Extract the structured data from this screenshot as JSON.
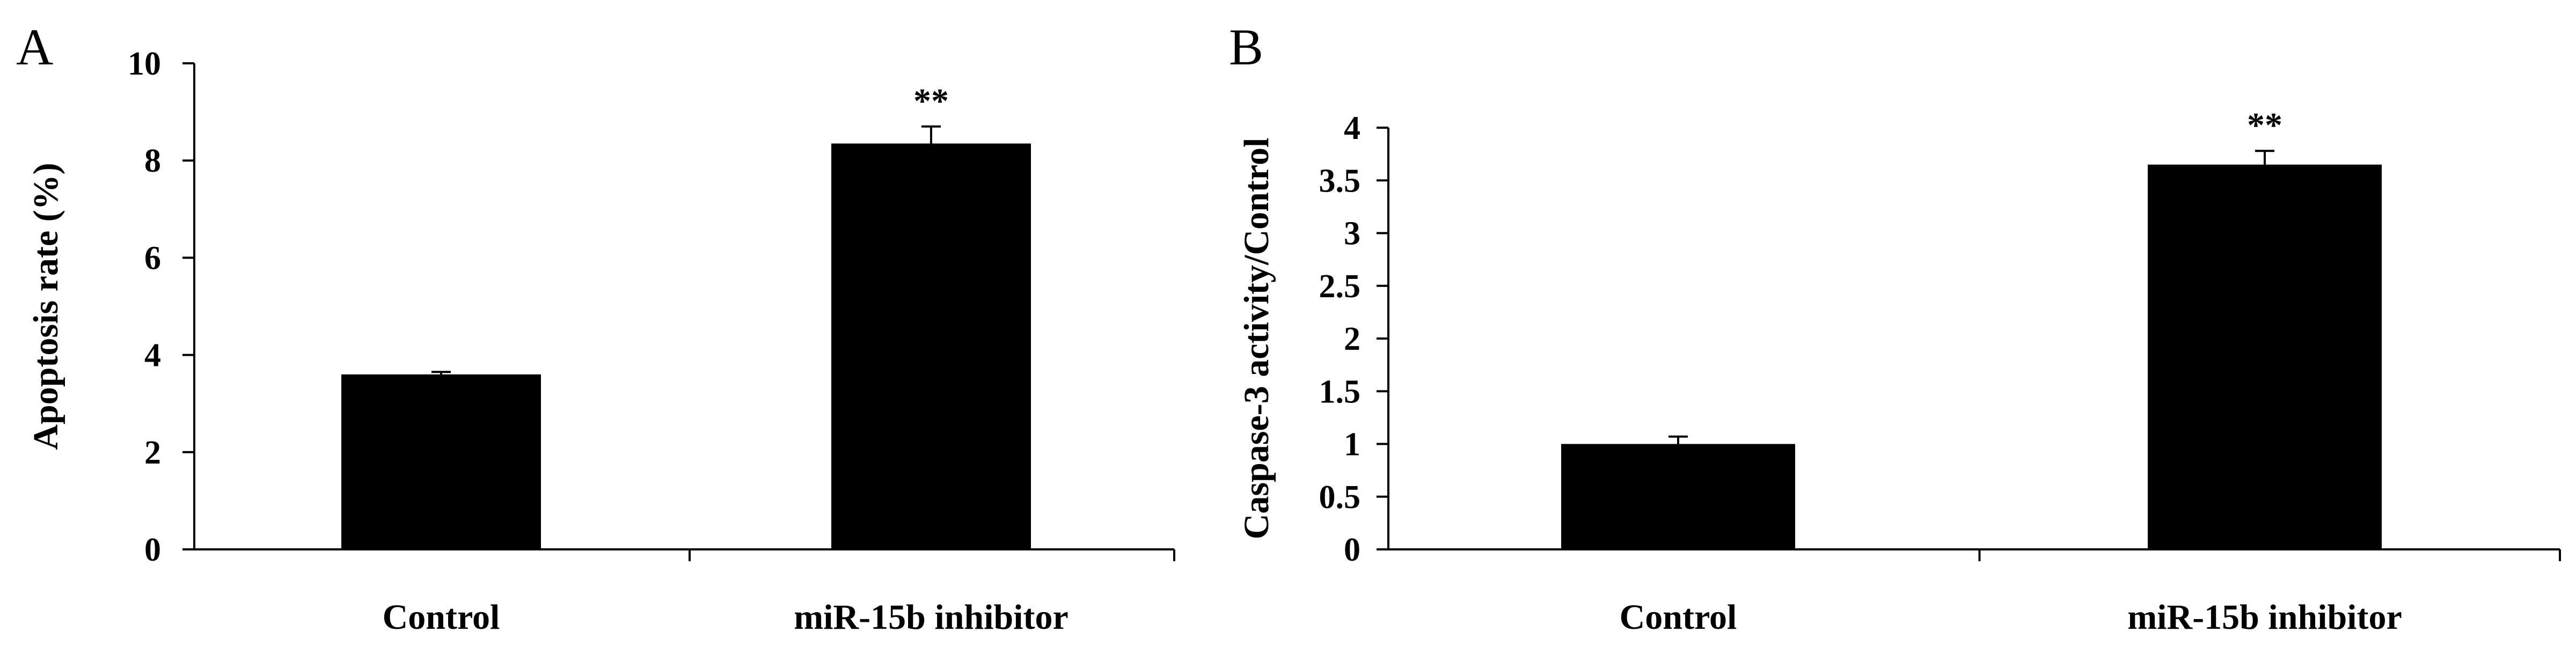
{
  "chart_data": [
    {
      "panel": "A",
      "type": "bar",
      "categories": [
        "Control",
        "miR-15b inhibitor"
      ],
      "values": [
        3.6,
        8.35
      ],
      "errors": [
        0.05,
        0.35
      ],
      "significance": [
        "",
        "**"
      ],
      "xlabel": "",
      "ylabel": "Apoptosis rate (%)",
      "ylim": [
        0,
        10
      ],
      "yticks": [
        "0",
        "2",
        "4",
        "6",
        "8",
        "10"
      ],
      "ytick_values": [
        0,
        2,
        4,
        6,
        8,
        10
      ],
      "grid": false,
      "bar_color": "#000000"
    },
    {
      "panel": "B",
      "type": "bar",
      "categories": [
        "Control",
        "miR-15b inhibitor"
      ],
      "values": [
        1.0,
        3.65
      ],
      "errors": [
        0.07,
        0.13
      ],
      "significance": [
        "",
        "**"
      ],
      "xlabel": "",
      "ylabel": "Caspase-3 activity/Control",
      "ylim": [
        0,
        4
      ],
      "yticks": [
        "0",
        "0.5",
        "1",
        "1.5",
        "2",
        "2.5",
        "3",
        "3.5",
        "4"
      ],
      "ytick_values": [
        0,
        0.5,
        1,
        1.5,
        2,
        2.5,
        3,
        3.5,
        4
      ],
      "grid": false,
      "bar_color": "#000000"
    }
  ]
}
